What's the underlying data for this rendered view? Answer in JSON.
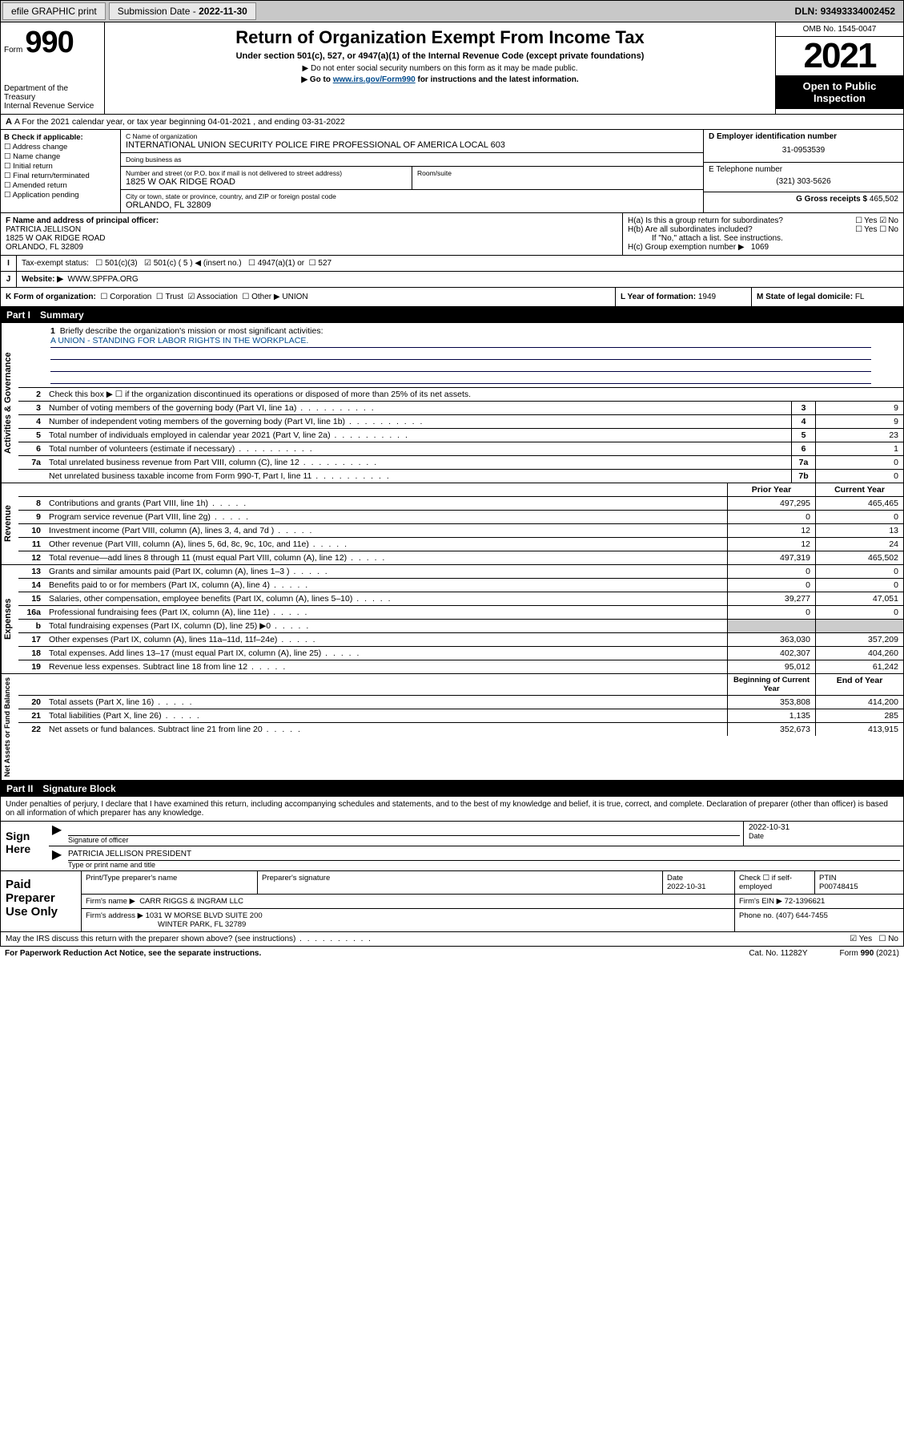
{
  "topbar": {
    "efile": "efile GRAPHIC print",
    "sub_label": "Submission Date",
    "sub_date": "2022-11-30",
    "dln_label": "DLN:",
    "dln": "93493334002452"
  },
  "header": {
    "form_word": "Form",
    "form_num": "990",
    "dept": "Department of the Treasury\nInternal Revenue Service",
    "title": "Return of Organization Exempt From Income Tax",
    "sub": "Under section 501(c), 527, or 4947(a)(1) of the Internal Revenue Code (except private foundations)",
    "note1": "▶ Do not enter social security numbers on this form as it may be made public.",
    "note2_pre": "▶ Go to ",
    "note2_link": "www.irs.gov/Form990",
    "note2_post": " for instructions and the latest information.",
    "omb": "OMB No. 1545-0047",
    "year": "2021",
    "open": "Open to Public Inspection"
  },
  "row_a": "A For the 2021 calendar year, or tax year beginning 04-01-2021   , and ending 03-31-2022",
  "col_b": {
    "hdr": "B Check if applicable:",
    "items": [
      "Address change",
      "Name change",
      "Initial return",
      "Final return/terminated",
      "Amended return",
      "Application pending"
    ]
  },
  "col_c": {
    "name_lab": "C Name of organization",
    "name": "INTERNATIONAL UNION SECURITY POLICE FIRE PROFESSIONAL OF AMERICA LOCAL 603",
    "dba_lab": "Doing business as",
    "dba": "",
    "addr_lab": "Number and street (or P.O. box if mail is not delivered to street address)",
    "addr": "1825 W OAK RIDGE ROAD",
    "suite_lab": "Room/suite",
    "suite": "",
    "city_lab": "City or town, state or province, country, and ZIP or foreign postal code",
    "city": "ORLANDO, FL  32809"
  },
  "col_d": {
    "ein_lab": "D Employer identification number",
    "ein": "31-0953539",
    "tel_lab": "E Telephone number",
    "tel": "(321) 303-5626",
    "gross_lab": "G Gross receipts $",
    "gross": "465,502"
  },
  "block_f": {
    "lab": "F Name and address of principal officer:",
    "name": "PATRICIA JELLISON",
    "addr1": "1825 W OAK RIDGE ROAD",
    "addr2": "ORLANDO, FL  32809"
  },
  "block_h": {
    "ha": "H(a)  Is this a group return for subordinates?",
    "ha_yes": "Yes",
    "ha_no": "No",
    "hb": "H(b)  Are all subordinates included?",
    "hb_yes": "Yes",
    "hb_no": "No",
    "hb_note": "If \"No,\" attach a list. See instructions.",
    "hc": "H(c)  Group exemption number ▶",
    "hc_val": "1069"
  },
  "row_i": {
    "lab": "I",
    "t": "Tax-exempt status:",
    "opt1": "501(c)(3)",
    "opt2": "501(c) ( 5 ) ◀ (insert no.)",
    "opt3": "4947(a)(1) or",
    "opt4": "527"
  },
  "row_j": {
    "lab": "J",
    "t": "Website: ▶",
    "v": "WWW.SPFPA.ORG"
  },
  "row_k": {
    "t": "K Form of organization:",
    "o1": "Corporation",
    "o2": "Trust",
    "o3": "Association",
    "o4": "Other ▶",
    "o4v": "UNION",
    "l_lab": "L Year of formation:",
    "l_v": "1949",
    "m_lab": "M State of legal domicile:",
    "m_v": "FL"
  },
  "part1": {
    "num": "Part I",
    "title": "Summary"
  },
  "summary": {
    "tab_gov": "Activities & Governance",
    "tab_rev": "Revenue",
    "tab_exp": "Expenses",
    "tab_net": "Net Assets or Fund Balances",
    "l1": "Briefly describe the organization's mission or most significant activities:",
    "l1v": "A UNION - STANDING FOR LABOR RIGHTS IN THE WORKPLACE.",
    "l2": "Check this box ▶ ☐  if the organization discontinued its operations or disposed of more than 25% of its net assets.",
    "hdr_prior": "Prior Year",
    "hdr_curr": "Current Year",
    "hdr_begin": "Beginning of Current Year",
    "hdr_end": "End of Year",
    "lines_gov": [
      {
        "n": "3",
        "t": "Number of voting members of the governing body (Part VI, line 1a)",
        "box": "3",
        "v": "9"
      },
      {
        "n": "4",
        "t": "Number of independent voting members of the governing body (Part VI, line 1b)",
        "box": "4",
        "v": "9"
      },
      {
        "n": "5",
        "t": "Total number of individuals employed in calendar year 2021 (Part V, line 2a)",
        "box": "5",
        "v": "23"
      },
      {
        "n": "6",
        "t": "Total number of volunteers (estimate if necessary)",
        "box": "6",
        "v": "1"
      },
      {
        "n": "7a",
        "t": "Total unrelated business revenue from Part VIII, column (C), line 12",
        "box": "7a",
        "v": "0"
      },
      {
        "n": "",
        "t": "Net unrelated business taxable income from Form 990-T, Part I, line 11",
        "box": "7b",
        "v": "0"
      }
    ],
    "lines_rev": [
      {
        "n": "8",
        "t": "Contributions and grants (Part VIII, line 1h)",
        "p": "497,295",
        "c": "465,465"
      },
      {
        "n": "9",
        "t": "Program service revenue (Part VIII, line 2g)",
        "p": "0",
        "c": "0"
      },
      {
        "n": "10",
        "t": "Investment income (Part VIII, column (A), lines 3, 4, and 7d )",
        "p": "12",
        "c": "13"
      },
      {
        "n": "11",
        "t": "Other revenue (Part VIII, column (A), lines 5, 6d, 8c, 9c, 10c, and 11e)",
        "p": "12",
        "c": "24"
      },
      {
        "n": "12",
        "t": "Total revenue—add lines 8 through 11 (must equal Part VIII, column (A), line 12)",
        "p": "497,319",
        "c": "465,502"
      }
    ],
    "lines_exp": [
      {
        "n": "13",
        "t": "Grants and similar amounts paid (Part IX, column (A), lines 1–3 )",
        "p": "0",
        "c": "0"
      },
      {
        "n": "14",
        "t": "Benefits paid to or for members (Part IX, column (A), line 4)",
        "p": "0",
        "c": "0"
      },
      {
        "n": "15",
        "t": "Salaries, other compensation, employee benefits (Part IX, column (A), lines 5–10)",
        "p": "39,277",
        "c": "47,051"
      },
      {
        "n": "16a",
        "t": "Professional fundraising fees (Part IX, column (A), line 11e)",
        "p": "0",
        "c": "0"
      },
      {
        "n": "b",
        "t": "Total fundraising expenses (Part IX, column (D), line 25) ▶0",
        "p": "",
        "c": "",
        "shade": true
      },
      {
        "n": "17",
        "t": "Other expenses (Part IX, column (A), lines 11a–11d, 11f–24e)",
        "p": "363,030",
        "c": "357,209"
      },
      {
        "n": "18",
        "t": "Total expenses. Add lines 13–17 (must equal Part IX, column (A), line 25)",
        "p": "402,307",
        "c": "404,260"
      },
      {
        "n": "19",
        "t": "Revenue less expenses. Subtract line 18 from line 12",
        "p": "95,012",
        "c": "61,242"
      }
    ],
    "lines_net": [
      {
        "n": "20",
        "t": "Total assets (Part X, line 16)",
        "p": "353,808",
        "c": "414,200"
      },
      {
        "n": "21",
        "t": "Total liabilities (Part X, line 26)",
        "p": "1,135",
        "c": "285"
      },
      {
        "n": "22",
        "t": "Net assets or fund balances. Subtract line 21 from line 20",
        "p": "352,673",
        "c": "413,915"
      }
    ]
  },
  "part2": {
    "num": "Part II",
    "title": "Signature Block"
  },
  "sig": {
    "intro": "Under penalties of perjury, I declare that I have examined this return, including accompanying schedules and statements, and to the best of my knowledge and belief, it is true, correct, and complete. Declaration of preparer (other than officer) is based on all information of which preparer has any knowledge.",
    "here": "Sign Here",
    "sig_lab": "Signature of officer",
    "date_lab": "Date",
    "date": "2022-10-31",
    "name": "PATRICIA JELLISON  PRESIDENT",
    "name_lab": "Type or print name and title"
  },
  "prep": {
    "lab": "Paid Preparer Use Only",
    "h1": "Print/Type preparer's name",
    "h2": "Preparer's signature",
    "h3": "Date",
    "h4": "Check ☐ if self-employed",
    "h5": "PTIN",
    "date": "2022-10-31",
    "ptin": "P00748415",
    "firm_lab": "Firm's name   ▶",
    "firm": "CARR RIGGS & INGRAM LLC",
    "ein_lab": "Firm's EIN ▶",
    "ein": "72-1396621",
    "addr_lab": "Firm's address ▶",
    "addr1": "1031 W MORSE BLVD SUITE 200",
    "addr2": "WINTER PARK, FL  32789",
    "phone_lab": "Phone no.",
    "phone": "(407) 644-7455"
  },
  "final": {
    "t": "May the IRS discuss this return with the preparer shown above? (see instructions)",
    "yes": "Yes",
    "no": "No"
  },
  "footer": {
    "l": "For Paperwork Reduction Act Notice, see the separate instructions.",
    "c": "Cat. No. 11282Y",
    "f": "Form 990 (2021)"
  }
}
